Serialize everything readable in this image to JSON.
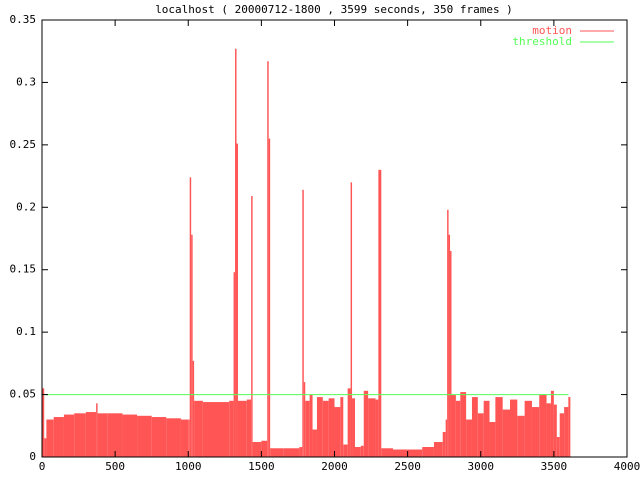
{
  "chart_data": {
    "type": "impulses",
    "title": "localhost ( 20000712-1800 , 3599 seconds, 350 frames )",
    "xlim": [
      0,
      4000
    ],
    "xticks": [
      0,
      500,
      1000,
      1500,
      2000,
      2500,
      3000,
      3500,
      4000
    ],
    "ylim": [
      0,
      0.35
    ],
    "yticks": [
      0,
      0.05,
      0.1,
      0.15,
      0.2,
      0.25,
      0.3,
      0.35
    ],
    "legend": "top-right",
    "series": [
      {
        "name": "motion",
        "color": "#ff5555",
        "style": "impulses",
        "x": [
          0,
          15,
          30,
          80,
          150,
          220,
          300,
          370,
          380,
          450,
          550,
          650,
          750,
          850,
          950,
          1000,
          1010,
          1020,
          1030,
          1040,
          1100,
          1200,
          1280,
          1310,
          1320,
          1330,
          1340,
          1400,
          1430,
          1440,
          1500,
          1540,
          1550,
          1560,
          1650,
          1760,
          1780,
          1790,
          1800,
          1830,
          1850,
          1880,
          1920,
          1960,
          2000,
          2040,
          2060,
          2090,
          2110,
          2120,
          2140,
          2180,
          2200,
          2230,
          2280,
          2300,
          2320,
          2400,
          2500,
          2600,
          2680,
          2740,
          2760,
          2770,
          2780,
          2790,
          2800,
          2830,
          2860,
          2900,
          2940,
          2980,
          3020,
          3060,
          3100,
          3150,
          3200,
          3250,
          3300,
          3350,
          3400,
          3450,
          3480,
          3500,
          3520,
          3540,
          3570,
          3599
        ],
        "values": [
          0.055,
          0.015,
          0.03,
          0.032,
          0.034,
          0.035,
          0.036,
          0.043,
          0.035,
          0.035,
          0.034,
          0.033,
          0.032,
          0.031,
          0.03,
          0.03,
          0.224,
          0.178,
          0.077,
          0.045,
          0.044,
          0.044,
          0.045,
          0.148,
          0.327,
          0.251,
          0.045,
          0.046,
          0.209,
          0.012,
          0.013,
          0.317,
          0.255,
          0.007,
          0.007,
          0.008,
          0.214,
          0.06,
          0.045,
          0.05,
          0.022,
          0.048,
          0.045,
          0.047,
          0.04,
          0.048,
          0.01,
          0.055,
          0.22,
          0.047,
          0.008,
          0.009,
          0.053,
          0.047,
          0.046,
          0.23,
          0.007,
          0.006,
          0.006,
          0.008,
          0.012,
          0.02,
          0.03,
          0.198,
          0.178,
          0.165,
          0.05,
          0.045,
          0.052,
          0.03,
          0.048,
          0.035,
          0.045,
          0.028,
          0.048,
          0.038,
          0.046,
          0.033,
          0.045,
          0.04,
          0.05,
          0.043,
          0.053,
          0.042,
          0.016,
          0.035,
          0.04,
          0.048
        ]
      },
      {
        "name": "threshold",
        "color": "#55ff55",
        "style": "line",
        "x": [
          0,
          3599
        ],
        "values": [
          0.05,
          0.05
        ]
      }
    ]
  }
}
